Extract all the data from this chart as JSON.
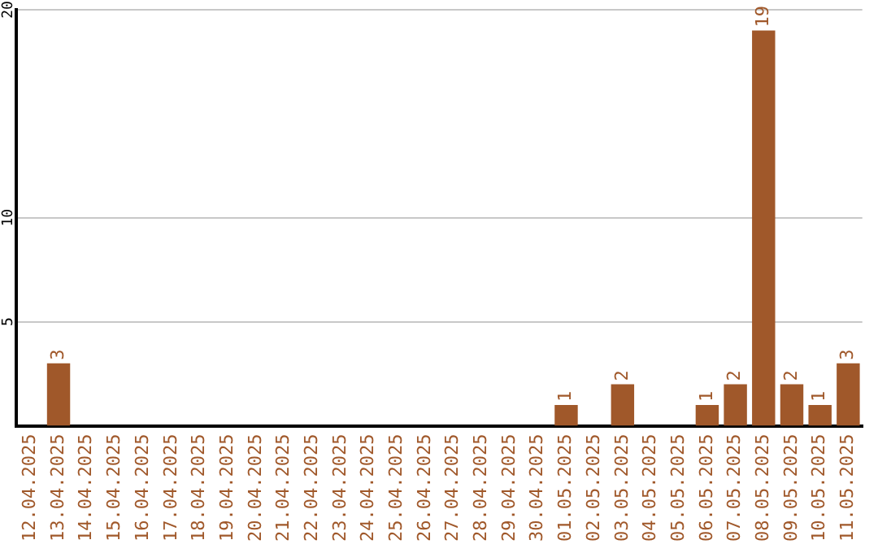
{
  "chart_data": {
    "type": "bar",
    "categories": [
      "12.04.2025",
      "13.04.2025",
      "14.04.2025",
      "15.04.2025",
      "16.04.2025",
      "17.04.2025",
      "18.04.2025",
      "19.04.2025",
      "20.04.2025",
      "21.04.2025",
      "22.04.2025",
      "23.04.2025",
      "24.04.2025",
      "25.04.2025",
      "26.04.2025",
      "27.04.2025",
      "28.04.2025",
      "29.04.2025",
      "30.04.2025",
      "01.05.2025",
      "02.05.2025",
      "03.05.2025",
      "04.05.2025",
      "05.05.2025",
      "06.05.2025",
      "07.05.2025",
      "08.05.2025",
      "09.05.2025",
      "10.05.2025",
      "11.05.2025"
    ],
    "values": [
      0,
      3,
      0,
      0,
      0,
      0,
      0,
      0,
      0,
      0,
      0,
      0,
      0,
      0,
      0,
      0,
      0,
      0,
      0,
      1,
      0,
      2,
      0,
      0,
      1,
      2,
      19,
      2,
      1,
      3
    ],
    "value_labels": [
      null,
      "3",
      null,
      null,
      null,
      null,
      null,
      null,
      null,
      null,
      null,
      null,
      null,
      null,
      null,
      null,
      null,
      null,
      null,
      "1",
      null,
      "2",
      null,
      null,
      "1",
      "2",
      "19",
      "2",
      "1",
      "3"
    ],
    "color": "#a0582a",
    "ylim": [
      0,
      20
    ],
    "yticks": [
      5,
      10,
      20
    ],
    "grid": "y",
    "legend": false
  }
}
